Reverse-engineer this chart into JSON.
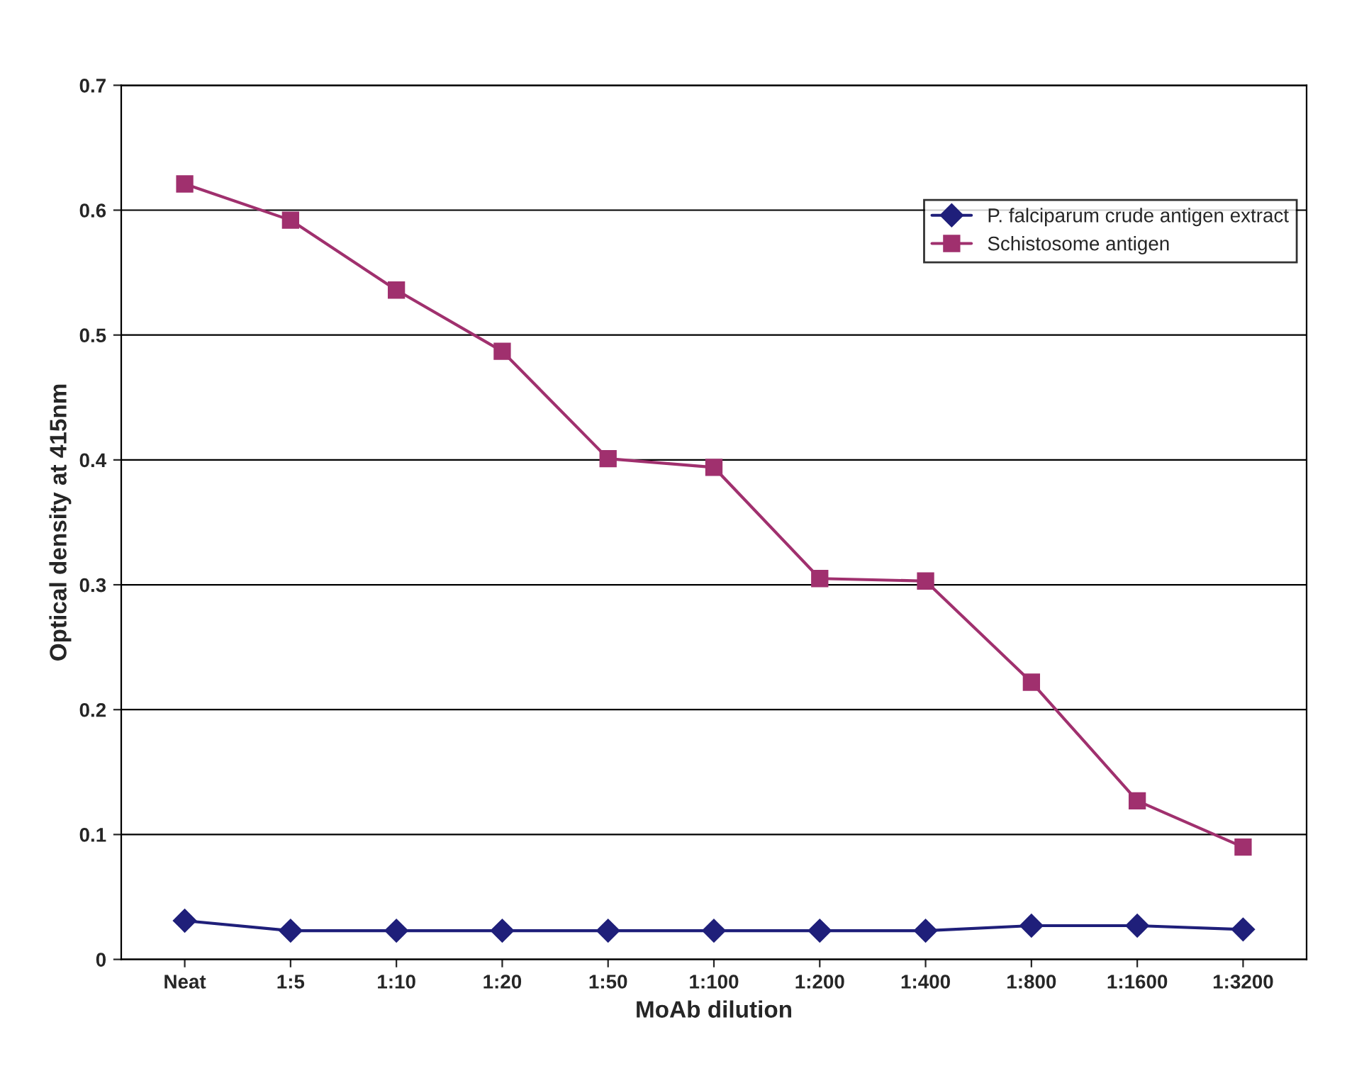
{
  "chart_data": {
    "type": "line",
    "xlabel": "MoAb dilution",
    "ylabel": "Optical density at 415nm",
    "categories": [
      "Neat",
      "1:5",
      "1:10",
      "1:20",
      "1:50",
      "1:100",
      "1:200",
      "1:400",
      "1:800",
      "1:1600",
      "1:3200"
    ],
    "series": [
      {
        "name": "P. falciparum crude antigen extract",
        "color": "#1f1f7a",
        "marker": "diamond",
        "values": [
          0.031,
          0.023,
          0.023,
          0.023,
          0.023,
          0.023,
          0.023,
          0.023,
          0.027,
          0.027,
          0.024
        ]
      },
      {
        "name": "Schistosome antigen",
        "color": "#a0306e",
        "marker": "square",
        "values": [
          0.621,
          0.592,
          0.536,
          0.487,
          0.401,
          0.394,
          0.305,
          0.303,
          0.222,
          0.127,
          0.09
        ]
      }
    ],
    "ylim": [
      0,
      0.7
    ],
    "yticks": [
      0,
      0.1,
      0.2,
      0.3,
      0.4,
      0.5,
      0.6,
      0.7
    ],
    "grid": "y",
    "legend": "top right",
    "line_style": "solid"
  }
}
